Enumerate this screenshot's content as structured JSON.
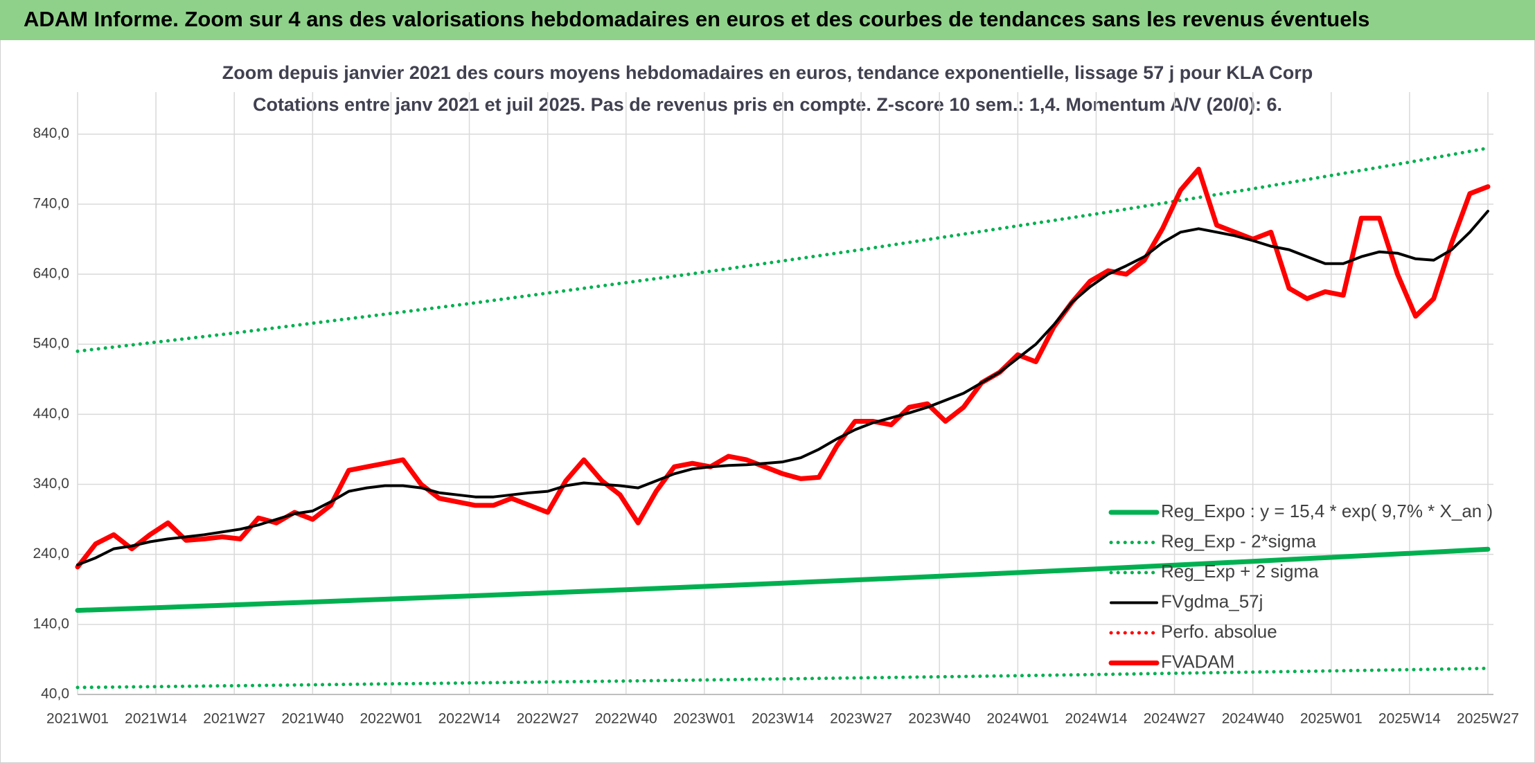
{
  "header": {
    "title": "ADAM Informe. Zoom sur 4 ans des valorisations hebdomadaires en euros et des courbes de tendances sans les revenus éventuels"
  },
  "chart_data": {
    "type": "line",
    "title": "Zoom depuis janvier 2021 des cours moyens hebdomadaires en euros, tendance exponentielle, lissage 57 j pour KLA Corp",
    "subtitle": "Cotations entre janv 2021 et juil 2025. Pas de revenus pris en compte. Z-score 10 sem.: 1,4. Momentum A/V (20/0): 6.",
    "xlim": [
      0,
      234
    ],
    "xticks": [
      {
        "value": 0,
        "label": "2021W01"
      },
      {
        "value": 13,
        "label": "2021W14"
      },
      {
        "value": 26,
        "label": "2021W27"
      },
      {
        "value": 39,
        "label": "2021W40"
      },
      {
        "value": 52,
        "label": "2022W01"
      },
      {
        "value": 65,
        "label": "2022W14"
      },
      {
        "value": 78,
        "label": "2022W27"
      },
      {
        "value": 91,
        "label": "2022W40"
      },
      {
        "value": 104,
        "label": "2023W01"
      },
      {
        "value": 117,
        "label": "2023W14"
      },
      {
        "value": 130,
        "label": "2023W27"
      },
      {
        "value": 143,
        "label": "2023W40"
      },
      {
        "value": 156,
        "label": "2024W01"
      },
      {
        "value": 169,
        "label": "2024W14"
      },
      {
        "value": 182,
        "label": "2024W27"
      },
      {
        "value": 195,
        "label": "2024W40"
      },
      {
        "value": 208,
        "label": "2025W01"
      },
      {
        "value": 221,
        "label": "2025W14"
      },
      {
        "value": 234,
        "label": "2025W27"
      }
    ],
    "ylim": [
      40,
      900
    ],
    "yticks": [
      {
        "value": 40,
        "label": "40,0"
      },
      {
        "value": 140,
        "label": "140,0"
      },
      {
        "value": 240,
        "label": "240,0"
      },
      {
        "value": 340,
        "label": "340,0"
      },
      {
        "value": 440,
        "label": "440,0"
      },
      {
        "value": 540,
        "label": "540,0"
      },
      {
        "value": 640,
        "label": "640,0"
      },
      {
        "value": 740,
        "label": "740,0"
      },
      {
        "value": 840,
        "label": "840,0"
      }
    ],
    "grid": true,
    "legend": "bottom-right",
    "series": [
      {
        "name": "Reg_Expo : y = 15,4 * exp( 9,7% *  X_an )",
        "color": "#00b050",
        "style": "solid",
        "weight": "heavy",
        "x": [
          0,
          13,
          26,
          39,
          52,
          65,
          78,
          91,
          104,
          117,
          130,
          143,
          156,
          169,
          182,
          195,
          208,
          221,
          234
        ],
        "values": [
          160,
          163.9,
          167.9,
          172.0,
          176.3,
          180.6,
          185.0,
          189.6,
          194.2,
          199.0,
          203.8,
          208.8,
          214.0,
          219.2,
          224.6,
          230.1,
          235.7,
          241.5,
          247.4
        ]
      },
      {
        "name": "Reg_Exp - 2*sigma",
        "color": "#00b050",
        "style": "dotted",
        "weight": "normal",
        "x": [
          0,
          13,
          26,
          39,
          52,
          65,
          78,
          91,
          104,
          117,
          130,
          143,
          156,
          169,
          182,
          195,
          208,
          221,
          234
        ],
        "values": [
          50,
          51.2,
          52.5,
          53.8,
          55.1,
          56.4,
          57.8,
          59.2,
          60.7,
          62.2,
          63.7,
          65.2,
          66.8,
          68.5,
          70.2,
          71.9,
          73.6,
          75.4,
          77.3
        ]
      },
      {
        "name": "Reg_Exp + 2 sigma",
        "color": "#00b050",
        "style": "dotted",
        "weight": "normal",
        "x": [
          0,
          13,
          26,
          39,
          52,
          65,
          78,
          91,
          104,
          117,
          130,
          143,
          156,
          169,
          182,
          195,
          208,
          221,
          234
        ],
        "values": [
          530,
          543,
          556,
          570,
          584,
          598,
          613,
          628,
          643,
          659,
          675,
          692,
          709,
          726,
          744,
          762,
          781,
          800,
          820
        ]
      },
      {
        "name": "FVgdma_57j",
        "color": "#000000",
        "style": "solid",
        "weight": "normal",
        "x": [
          0,
          3,
          6,
          9,
          12,
          15,
          18,
          21,
          24,
          27,
          30,
          33,
          36,
          39,
          42,
          45,
          48,
          51,
          54,
          57,
          60,
          63,
          66,
          69,
          72,
          75,
          78,
          81,
          84,
          87,
          90,
          93,
          96,
          99,
          102,
          105,
          108,
          111,
          114,
          117,
          120,
          123,
          126,
          129,
          132,
          135,
          138,
          141,
          144,
          147,
          150,
          153,
          156,
          159,
          162,
          165,
          168,
          171,
          174,
          177,
          180,
          183,
          186,
          189,
          192,
          195,
          198,
          201,
          204,
          207,
          210,
          213,
          216,
          219,
          222,
          225,
          228,
          231,
          234
        ],
        "values": [
          225,
          235,
          248,
          252,
          258,
          262,
          265,
          268,
          272,
          276,
          282,
          290,
          298,
          302,
          315,
          330,
          335,
          338,
          338,
          335,
          328,
          325,
          322,
          322,
          325,
          328,
          330,
          338,
          342,
          340,
          338,
          335,
          345,
          355,
          362,
          365,
          367,
          368,
          370,
          372,
          378,
          390,
          405,
          418,
          428,
          435,
          442,
          450,
          460,
          470,
          485,
          500,
          520,
          540,
          568,
          600,
          622,
          640,
          652,
          665,
          685,
          700,
          705,
          700,
          695,
          688,
          680,
          675,
          665,
          655,
          655,
          665,
          672,
          670,
          662,
          660,
          675,
          700,
          730
        ]
      },
      {
        "name": "Perfo. absolue",
        "color": "#ff0000",
        "style": "dotted",
        "weight": "normal",
        "x": [],
        "values": []
      },
      {
        "name": "FVADAM",
        "color": "#ff0000",
        "style": "solid",
        "weight": "heavy",
        "x": [
          0,
          3,
          6,
          9,
          12,
          15,
          18,
          21,
          24,
          27,
          30,
          33,
          36,
          39,
          42,
          45,
          48,
          51,
          54,
          57,
          60,
          63,
          66,
          69,
          72,
          75,
          78,
          81,
          84,
          87,
          90,
          93,
          96,
          99,
          102,
          105,
          108,
          111,
          114,
          117,
          120,
          123,
          126,
          129,
          132,
          135,
          138,
          141,
          144,
          147,
          150,
          153,
          156,
          159,
          162,
          165,
          168,
          171,
          174,
          177,
          180,
          183,
          186,
          189,
          192,
          195,
          198,
          201,
          204,
          207,
          210,
          213,
          216,
          219,
          222,
          225,
          228,
          231,
          234
        ],
        "values": [
          222,
          255,
          268,
          248,
          268,
          285,
          260,
          262,
          265,
          262,
          292,
          285,
          300,
          290,
          310,
          360,
          365,
          370,
          375,
          340,
          320,
          315,
          310,
          310,
          320,
          310,
          300,
          345,
          375,
          345,
          325,
          285,
          330,
          365,
          370,
          365,
          380,
          375,
          365,
          355,
          348,
          350,
          395,
          430,
          430,
          425,
          450,
          455,
          430,
          450,
          485,
          500,
          525,
          515,
          565,
          600,
          630,
          645,
          640,
          660,
          705,
          760,
          790,
          710,
          700,
          690,
          700,
          620,
          605,
          615,
          610,
          720,
          720,
          640,
          580,
          605,
          685,
          755,
          765
        ]
      }
    ]
  }
}
